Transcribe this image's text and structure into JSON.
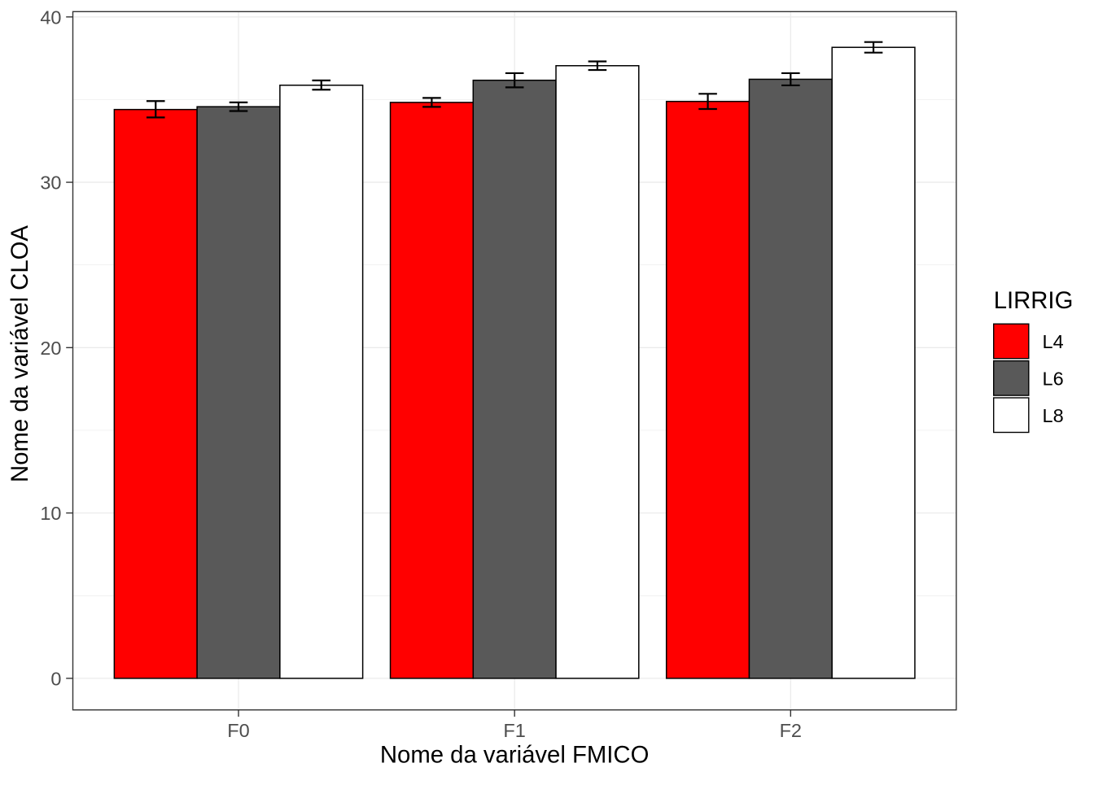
{
  "chart_data": {
    "type": "bar",
    "title": "",
    "xlabel": "Nome da variável FMICO",
    "ylabel": "Nome da variável CLOA",
    "categories": [
      "F0",
      "F1",
      "F2"
    ],
    "series": [
      {
        "name": "L4",
        "fill": "#FF0000",
        "values": [
          34.4,
          34.83,
          34.89
        ],
        "error_low": [
          33.92,
          34.56,
          34.43
        ],
        "error_high": [
          34.91,
          35.1,
          35.35
        ]
      },
      {
        "name": "L6",
        "fill": "#595959",
        "values": [
          34.57,
          36.17,
          36.23
        ],
        "error_low": [
          34.31,
          35.74,
          35.86
        ],
        "error_high": [
          34.83,
          36.6,
          36.6
        ]
      },
      {
        "name": "L8",
        "fill": "#FFFFFF",
        "values": [
          35.87,
          37.05,
          38.16
        ],
        "error_low": [
          35.6,
          36.79,
          37.84
        ],
        "error_high": [
          36.16,
          37.31,
          38.48
        ]
      }
    ],
    "y_ticks": [
      0,
      10,
      20,
      30,
      40
    ],
    "y_minor_ticks": [
      5,
      15,
      25,
      35
    ],
    "ylim": [
      -1.91,
      40.32
    ],
    "legend_title": "LIRRIG",
    "legend_position": "right",
    "grid": true,
    "bar_outline_color": "#000000",
    "errorbar_color": "#000000"
  },
  "style_colors": {
    "panel_border": "#333333",
    "axis_tick": "#333333",
    "tick_label": "#4D4D4D",
    "axis_title": "#000000",
    "gridline": "#EBEBEB",
    "background": "#FFFFFF"
  }
}
